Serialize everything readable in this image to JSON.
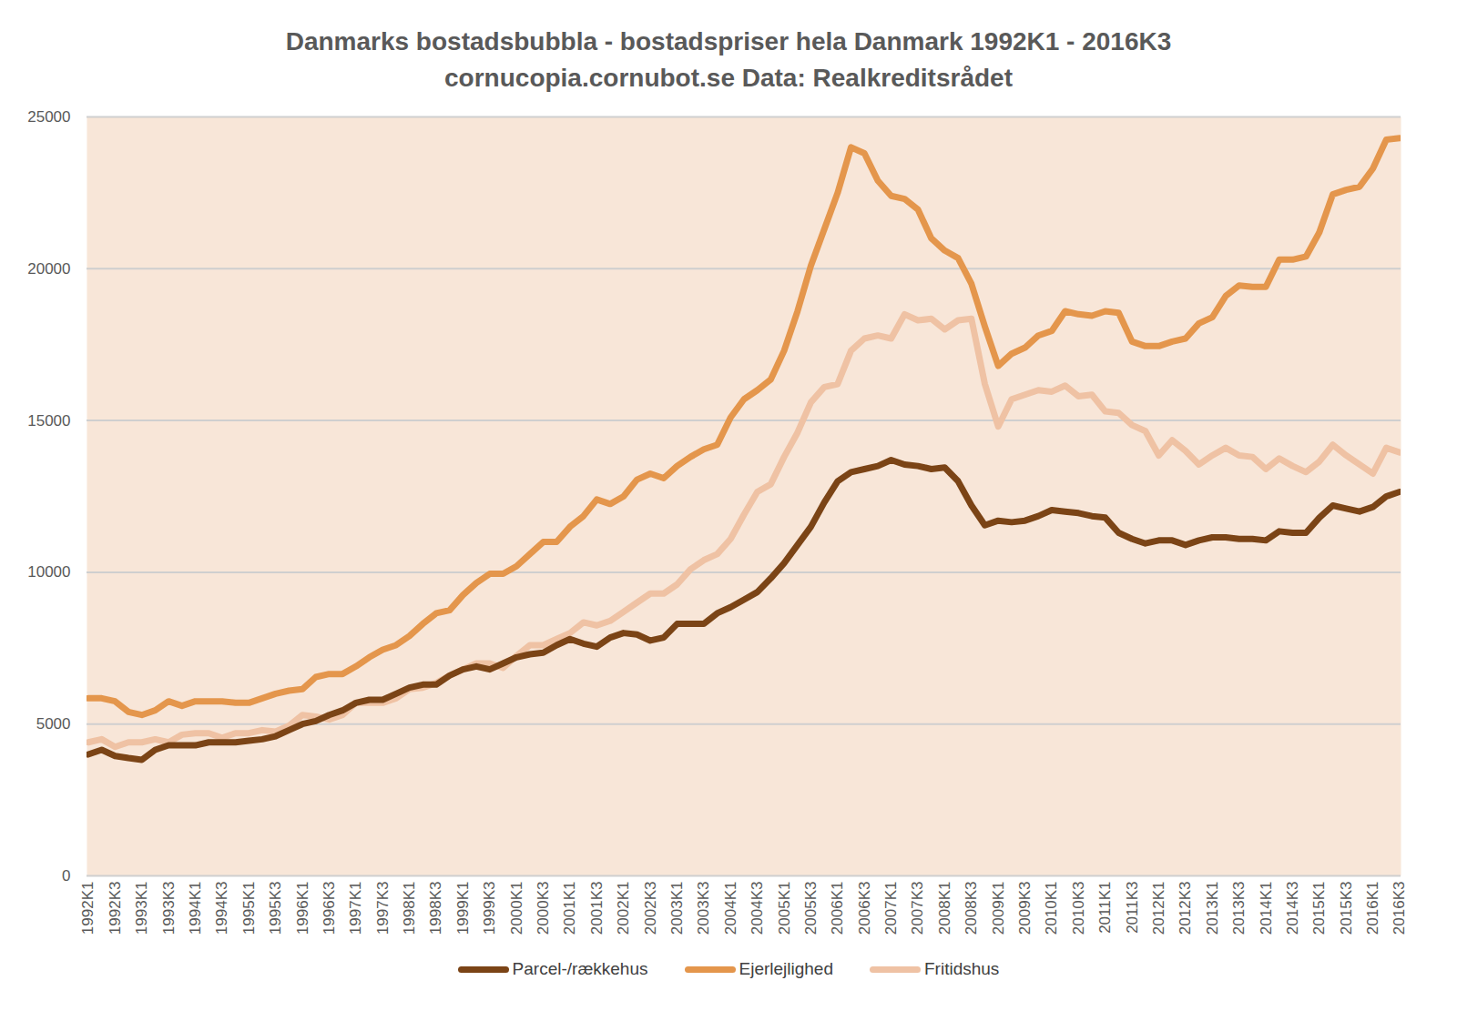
{
  "chart_data": {
    "type": "line",
    "title": "Danmarks bostadsbubbla - bostadspriser hela Danmark 1992K1 - 2016K3",
    "subtitle": "cornucopia.cornubot.se Data: Realkreditsrådet",
    "categories": [
      "1992K1",
      null,
      "1992K3",
      null,
      "1993K1",
      null,
      "1993K3",
      null,
      "1994K1",
      null,
      "1994K3",
      null,
      "1995K1",
      null,
      "1995K3",
      null,
      "1996K1",
      null,
      "1996K3",
      null,
      "1997K1",
      null,
      "1997K3",
      null,
      "1998K1",
      null,
      "1998K3",
      null,
      "1999K1",
      null,
      "1999K3",
      null,
      "2000K1",
      null,
      "2000K3",
      null,
      "2001K1",
      null,
      "2001K3",
      null,
      "2002K1",
      null,
      "2002K3",
      null,
      "2003K1",
      null,
      "2003K3",
      null,
      "2004K1",
      null,
      "2004K3",
      null,
      "2005K1",
      null,
      "2005K3",
      null,
      "2006K1",
      null,
      "2006K3",
      null,
      "2007K1",
      null,
      "2007K3",
      null,
      "2008K1",
      null,
      "2008K3",
      null,
      "2009K1",
      null,
      "2009K3",
      null,
      "2010K1",
      null,
      "2010K3",
      null,
      "2011K1",
      null,
      "2011K3",
      null,
      "2012K1",
      null,
      "2012K3",
      null,
      "2013K1",
      null,
      "2013K3",
      null,
      "2014K1",
      null,
      "2014K3",
      null,
      "2015K1",
      null,
      "2015K3",
      null,
      "2016K1",
      null,
      "2016K3"
    ],
    "series": [
      {
        "name": "Parcel-/rækkehus",
        "color": "#7b4416",
        "values": [
          4000,
          4150,
          3950,
          3880,
          3820,
          4150,
          4300,
          4300,
          4300,
          4400,
          4400,
          4400,
          4450,
          4500,
          4600,
          4800,
          5000,
          5100,
          5300,
          5450,
          5700,
          5800,
          5800,
          6000,
          6200,
          6300,
          6300,
          6600,
          6800,
          6900,
          6800,
          7000,
          7200,
          7300,
          7350,
          7600,
          7800,
          7650,
          7550,
          7850,
          8000,
          7950,
          7750,
          7850,
          8300,
          8300,
          8300,
          8650,
          8850,
          9100,
          9350,
          9800,
          10300,
          10900,
          11500,
          12300,
          13000,
          13300,
          13400,
          13500,
          13700,
          13550,
          13500,
          13400,
          13450,
          13000,
          12200,
          11550,
          11700,
          11650,
          11700,
          11850,
          12050,
          12000,
          11950,
          11850,
          11800,
          11300,
          11100,
          10950,
          11050,
          11050,
          10900,
          11050,
          11150,
          11150,
          11100,
          11100,
          11050,
          11350,
          11300,
          11300,
          11800,
          12200,
          12100,
          12000,
          12150,
          12500,
          12650
        ]
      },
      {
        "name": "Ejerlejlighed",
        "color": "#e4964c",
        "values": [
          5850,
          5850,
          5750,
          5400,
          5300,
          5450,
          5750,
          5600,
          5750,
          5750,
          5750,
          5700,
          5700,
          5850,
          6000,
          6100,
          6150,
          6550,
          6650,
          6650,
          6900,
          7200,
          7450,
          7600,
          7900,
          8300,
          8650,
          8750,
          9250,
          9650,
          9950,
          9950,
          10200,
          10600,
          11000,
          11000,
          11500,
          11850,
          12400,
          12250,
          12500,
          13050,
          13250,
          13100,
          13500,
          13800,
          14050,
          14200,
          15100,
          15700,
          16000,
          16350,
          17300,
          18600,
          20100,
          21300,
          22500,
          24000,
          23800,
          22900,
          22400,
          22300,
          21950,
          21000,
          20600,
          20350,
          19500,
          18100,
          16800,
          17200,
          17400,
          17800,
          17950,
          18600,
          18500,
          18450,
          18600,
          18550,
          17600,
          17450,
          17450,
          17600,
          17700,
          18200,
          18400,
          19100,
          19450,
          19400,
          19400,
          20300,
          20300,
          20400,
          21200,
          22450,
          22600,
          22700,
          23300,
          24250,
          24300
        ]
      },
      {
        "name": "Fritidshus",
        "color": "#efc2a4",
        "values": [
          4400,
          4500,
          4250,
          4400,
          4400,
          4500,
          4400,
          4650,
          4700,
          4700,
          4550,
          4700,
          4700,
          4800,
          4750,
          4950,
          5300,
          5250,
          5150,
          5300,
          5700,
          5700,
          5700,
          5850,
          6150,
          6200,
          6350,
          6600,
          6800,
          7000,
          7000,
          6850,
          7250,
          7600,
          7600,
          7800,
          8000,
          8350,
          8250,
          8400,
          8700,
          9000,
          9300,
          9300,
          9600,
          10100,
          10400,
          10600,
          11100,
          11900,
          12650,
          12900,
          13800,
          14600,
          15600,
          16100,
          16200,
          17300,
          17700,
          17800,
          17700,
          18500,
          18300,
          18350,
          18000,
          18300,
          18350,
          16200,
          14800,
          15700,
          15850,
          16000,
          15950,
          16150,
          15800,
          15850,
          15300,
          15250,
          14850,
          14650,
          13850,
          14350,
          14000,
          13550,
          13850,
          14100,
          13850,
          13800,
          13400,
          13750,
          13500,
          13300,
          13650,
          14200,
          13850,
          13550,
          13250,
          14100,
          13950
        ]
      }
    ],
    "ylim": [
      0,
      25000
    ],
    "yticks": [
      0,
      5000,
      10000,
      15000,
      20000,
      25000
    ],
    "grid": true,
    "legend": "bottom"
  }
}
